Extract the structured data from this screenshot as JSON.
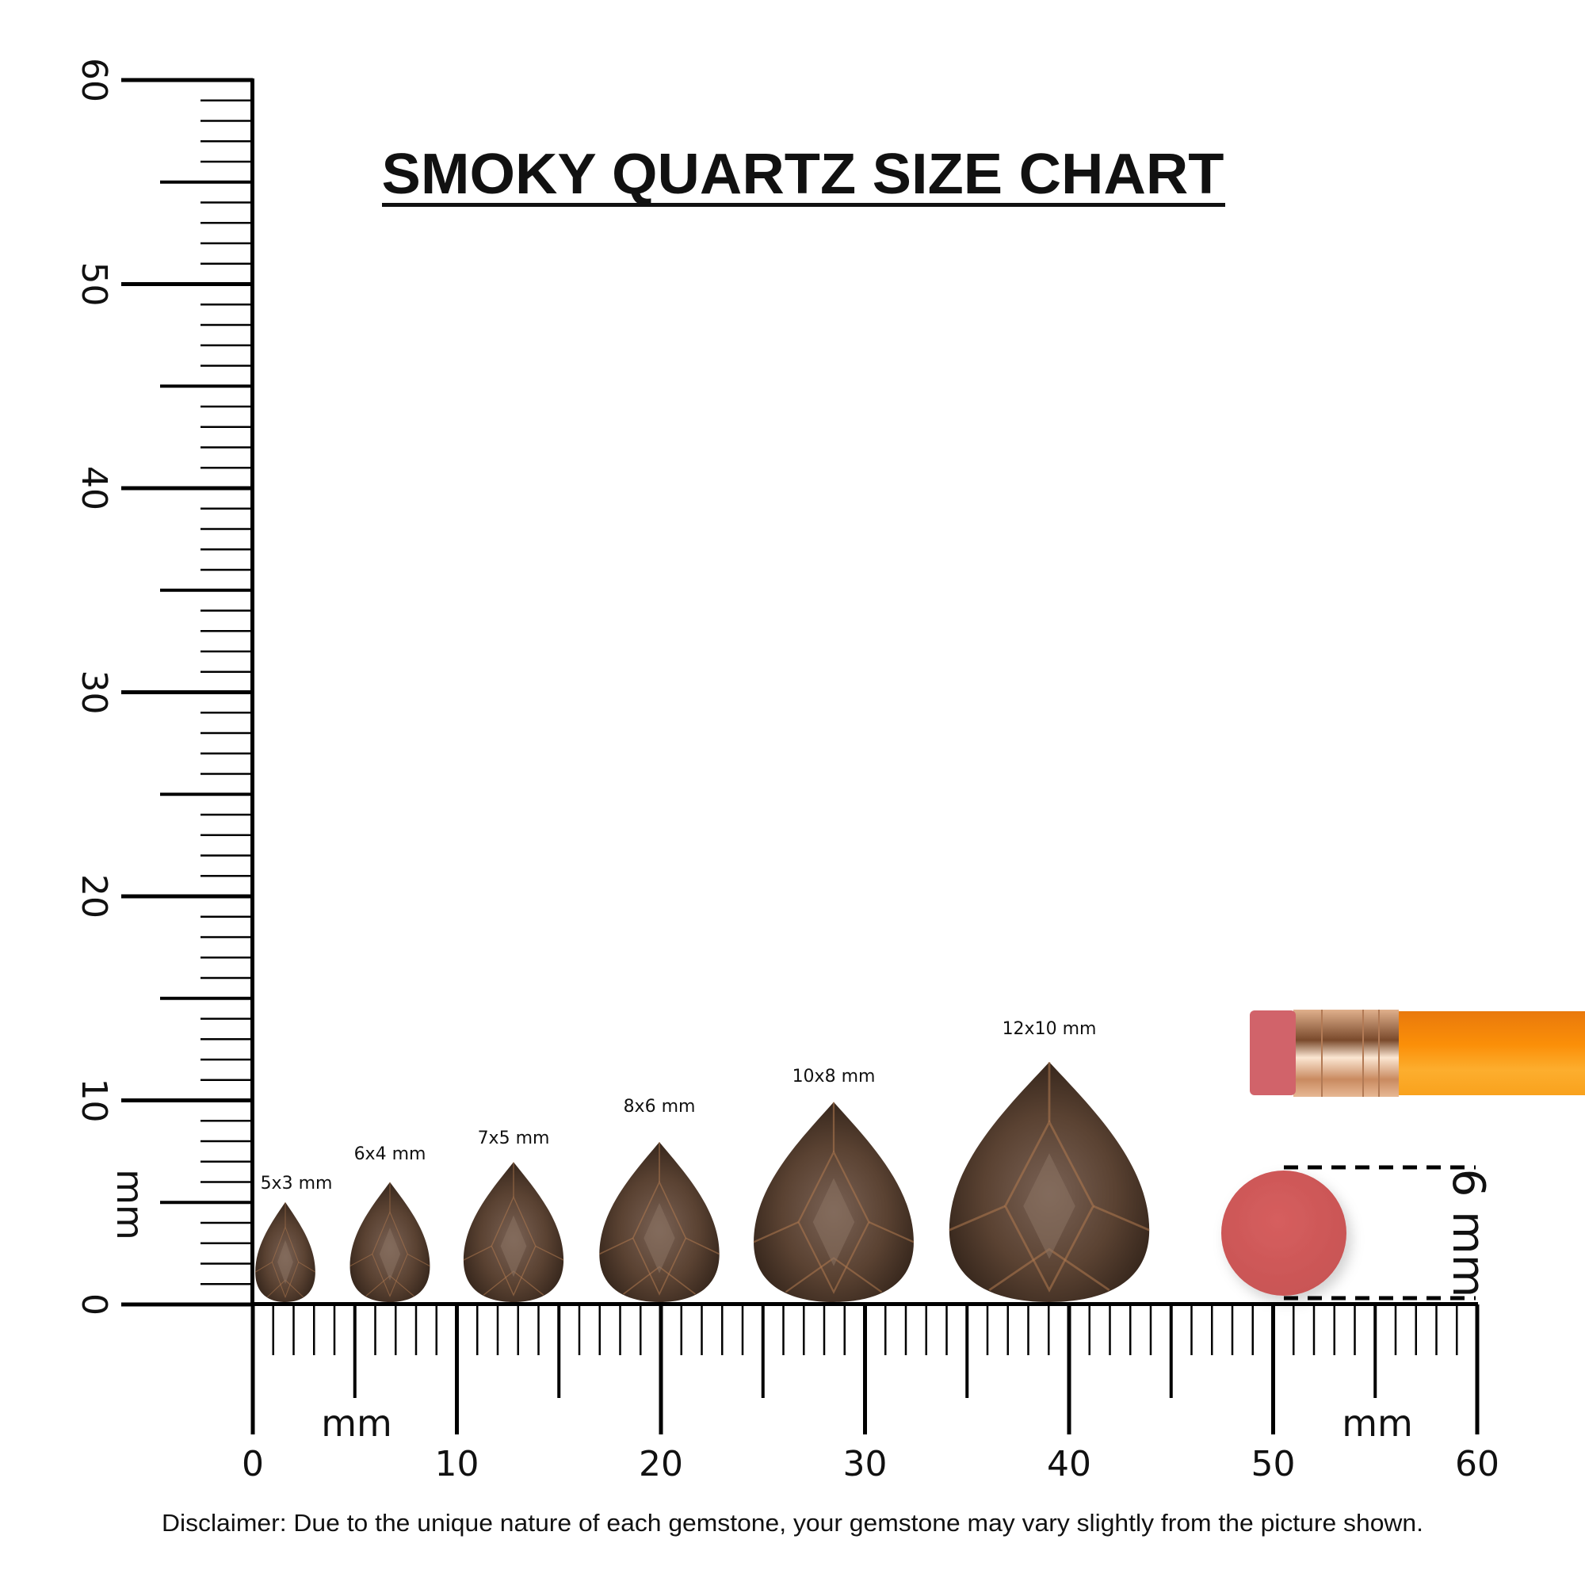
{
  "title": "SMOKY QUARTZ SIZE CHART",
  "ruler": {
    "unit_label": "mm",
    "range_mm": [
      0,
      60
    ],
    "major_labels": [
      "0",
      "10",
      "20",
      "30",
      "40",
      "50",
      "60"
    ]
  },
  "gems": [
    {
      "label": "5x3 mm"
    },
    {
      "label": "6x4 mm"
    },
    {
      "label": "7x5 mm"
    },
    {
      "label": "8x6 mm"
    },
    {
      "label": "10x8 mm"
    },
    {
      "label": "12x10 mm"
    }
  ],
  "reference": {
    "eraser_label": "6 mm"
  },
  "colors": {
    "gem_dark": "#3b2a1e",
    "gem_mid": "#6b5142",
    "gem_light": "#a9774f",
    "eraser": "#d35a5a",
    "pencil_body": "#f7920f",
    "ferrule": "#d9a27c"
  },
  "disclaimer": "Disclaimer: Due to the unique nature of each gemstone, your gemstone may vary slightly from the picture shown."
}
